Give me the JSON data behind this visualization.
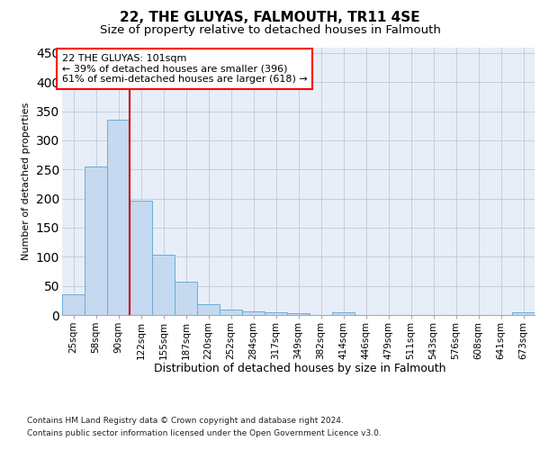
{
  "title": "22, THE GLUYAS, FALMOUTH, TR11 4SE",
  "subtitle": "Size of property relative to detached houses in Falmouth",
  "xlabel": "Distribution of detached houses by size in Falmouth",
  "ylabel": "Number of detached properties",
  "footnote1": "Contains HM Land Registry data © Crown copyright and database right 2024.",
  "footnote2": "Contains public sector information licensed under the Open Government Licence v3.0.",
  "categories": [
    "25sqm",
    "58sqm",
    "90sqm",
    "122sqm",
    "155sqm",
    "187sqm",
    "220sqm",
    "252sqm",
    "284sqm",
    "317sqm",
    "349sqm",
    "382sqm",
    "414sqm",
    "446sqm",
    "479sqm",
    "511sqm",
    "543sqm",
    "576sqm",
    "608sqm",
    "641sqm",
    "673sqm"
  ],
  "values": [
    35,
    255,
    335,
    197,
    103,
    57,
    19,
    10,
    6,
    5,
    3,
    0,
    5,
    0,
    0,
    0,
    0,
    0,
    0,
    0,
    4
  ],
  "bar_color": "#c5d9f0",
  "bar_edge_color": "#6aadd5",
  "property_line_color": "#cc0000",
  "annotation_text_line1": "22 THE GLUYAS: 101sqm",
  "annotation_text_line2": "← 39% of detached houses are smaller (396)",
  "annotation_text_line3": "61% of semi-detached houses are larger (618) →",
  "ylim": [
    0,
    460
  ],
  "yticks": [
    0,
    50,
    100,
    150,
    200,
    250,
    300,
    350,
    400,
    450
  ],
  "background_color": "#ffffff",
  "plot_background_color": "#e8eef8",
  "grid_color": "#c0c8d8",
  "title_fontsize": 11,
  "subtitle_fontsize": 9.5,
  "xlabel_fontsize": 9,
  "ylabel_fontsize": 8,
  "tick_fontsize": 7.5,
  "annotation_fontsize": 8,
  "footnote_fontsize": 6.5
}
